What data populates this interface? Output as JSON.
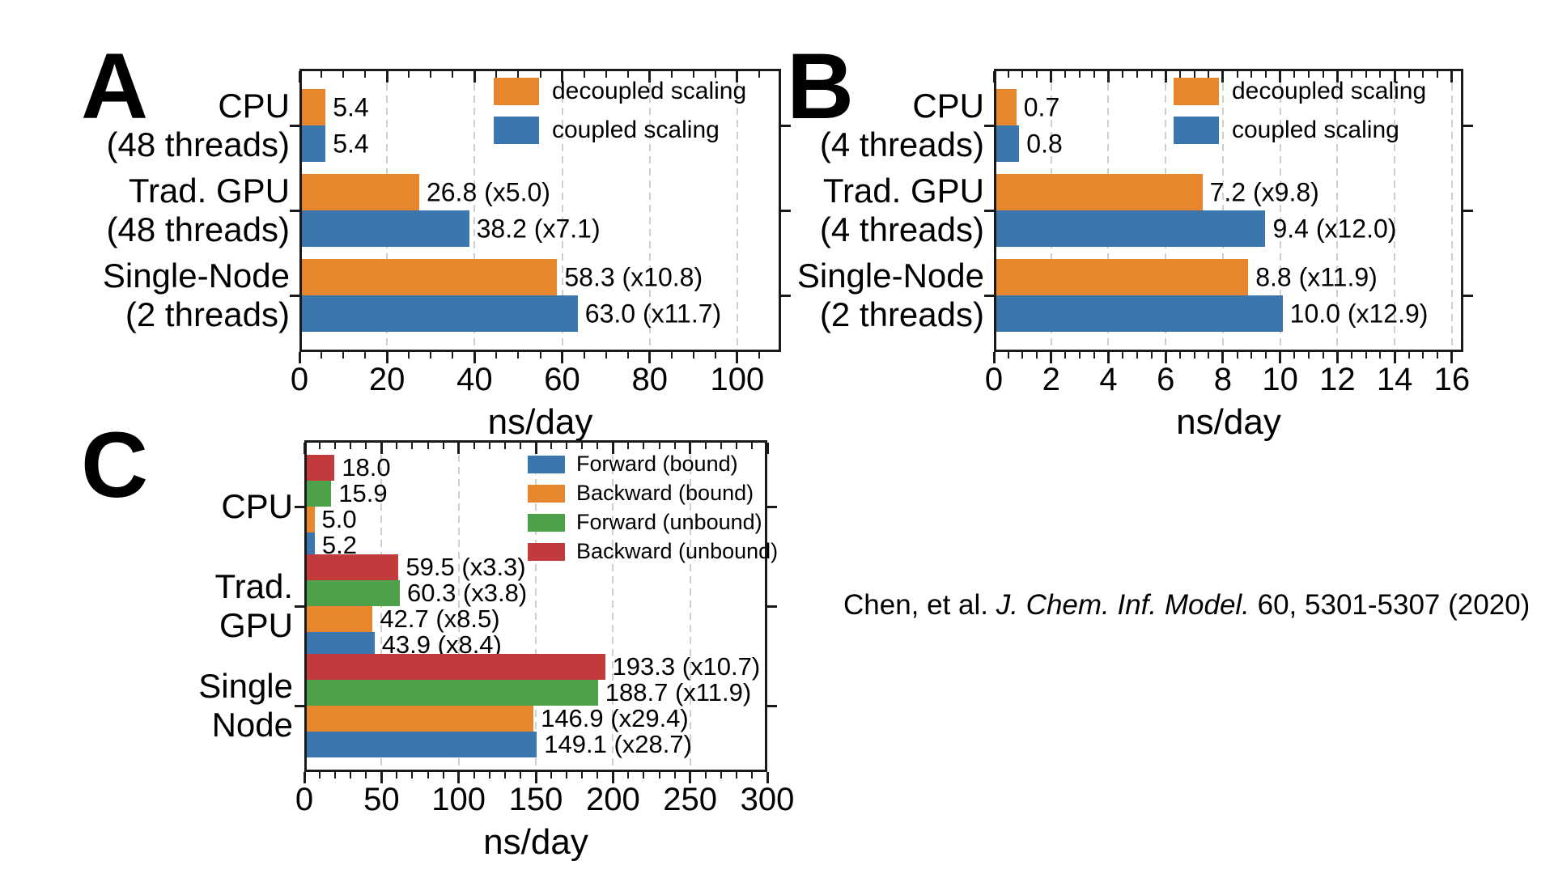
{
  "page": {
    "background": "#ffffff"
  },
  "colors": {
    "blue": "#3b76af",
    "orange": "#e8862d",
    "green": "#4ea14b",
    "red": "#c23b3c",
    "grid": "#cfcfcf",
    "axis": "#1a1a1a",
    "text": "#000000"
  },
  "citation": {
    "prefix": "Chen, et al. ",
    "journal": "J. Chem. Inf. Model.",
    "suffix": " 60, 5301-5307 (2020)"
  },
  "chart_data": [
    {
      "panel_label": "A",
      "type": "bar",
      "orientation": "horizontal",
      "xlabel": "ns/day",
      "xlim": [
        0,
        110
      ],
      "xticks": [
        0,
        20,
        40,
        60,
        80,
        100
      ],
      "xtick_labels": [
        "0",
        "20",
        "40",
        "60",
        "80",
        "100"
      ],
      "minor_tick_step": 5,
      "grid": true,
      "legend_position": "upper right (inside)",
      "categories": [
        [
          "CPU",
          "(48 threads)"
        ],
        [
          "Trad. GPU",
          "(48 threads)"
        ],
        [
          "Single-Node",
          "(2 threads)"
        ]
      ],
      "series": [
        {
          "name": "decoupled scaling",
          "color_key": "orange",
          "values": [
            5.4,
            26.8,
            58.3
          ],
          "bar_labels": [
            "5.4",
            "26.8 (x5.0)",
            "58.3 (x10.8)"
          ]
        },
        {
          "name": "coupled scaling",
          "color_key": "blue",
          "values": [
            5.4,
            38.2,
            63.0
          ],
          "bar_labels": [
            "5.4",
            "38.2 (x7.1)",
            "63.0 (x11.7)"
          ]
        }
      ],
      "row_series_order_top_to_bottom": [
        0,
        1
      ]
    },
    {
      "panel_label": "B",
      "type": "bar",
      "orientation": "horizontal",
      "xlabel": "ns/day",
      "xlim": [
        0,
        16.4
      ],
      "xticks": [
        0,
        2,
        4,
        6,
        8,
        10,
        12,
        14,
        16
      ],
      "xtick_labels": [
        "0",
        "2",
        "4",
        "6",
        "8",
        "10",
        "12",
        "14",
        "16"
      ],
      "minor_tick_step": 0.5,
      "grid": true,
      "legend_position": "upper right (inside)",
      "categories": [
        [
          "CPU",
          "(4 threads)"
        ],
        [
          "Trad. GPU",
          "(4 threads)"
        ],
        [
          "Single-Node",
          "(2 threads)"
        ]
      ],
      "series": [
        {
          "name": "decoupled scaling",
          "color_key": "orange",
          "values": [
            0.7,
            7.2,
            8.8
          ],
          "bar_labels": [
            "0.7",
            "7.2 (x9.8)",
            "8.8 (x11.9)"
          ]
        },
        {
          "name": "coupled scaling",
          "color_key": "blue",
          "values": [
            0.8,
            9.4,
            10.0
          ],
          "bar_labels": [
            "0.8",
            "9.4 (x12.0)",
            "10.0 (x12.9)"
          ]
        }
      ],
      "row_series_order_top_to_bottom": [
        0,
        1
      ]
    },
    {
      "panel_label": "C",
      "type": "bar",
      "orientation": "horizontal",
      "xlabel": "ns/day",
      "xlim": [
        0,
        300
      ],
      "xticks": [
        0,
        50,
        100,
        150,
        200,
        250,
        300
      ],
      "xtick_labels": [
        "0",
        "50",
        "100",
        "150",
        "200",
        "250",
        "300"
      ],
      "minor_tick_step": 10,
      "grid": true,
      "legend_position": "upper right (inside)",
      "categories": [
        [
          "CPU"
        ],
        [
          "Trad.",
          "GPU"
        ],
        [
          "Single",
          "Node"
        ]
      ],
      "series": [
        {
          "name": "Forward (bound)",
          "color_key": "blue",
          "values": [
            5.2,
            43.9,
            149.1
          ],
          "bar_labels": [
            "5.2",
            "43.9 (x8.4)",
            "149.1 (x28.7)"
          ]
        },
        {
          "name": "Backward (bound)",
          "color_key": "orange",
          "values": [
            5.0,
            42.7,
            146.9
          ],
          "bar_labels": [
            "5.0",
            "42.7 (x8.5)",
            "146.9 (x29.4)"
          ]
        },
        {
          "name": "Forward (unbound)",
          "color_key": "green",
          "values": [
            15.9,
            60.3,
            188.7
          ],
          "bar_labels": [
            "15.9",
            "60.3 (x3.8)",
            "188.7 (x11.9)"
          ]
        },
        {
          "name": "Backward (unbound)",
          "color_key": "red",
          "values": [
            18.0,
            59.5,
            193.3
          ],
          "bar_labels": [
            "18.0",
            "59.5 (x3.3)",
            "193.3 (x10.7)"
          ]
        }
      ],
      "row_series_order_top_to_bottom": [
        3,
        2,
        1,
        0
      ]
    }
  ]
}
